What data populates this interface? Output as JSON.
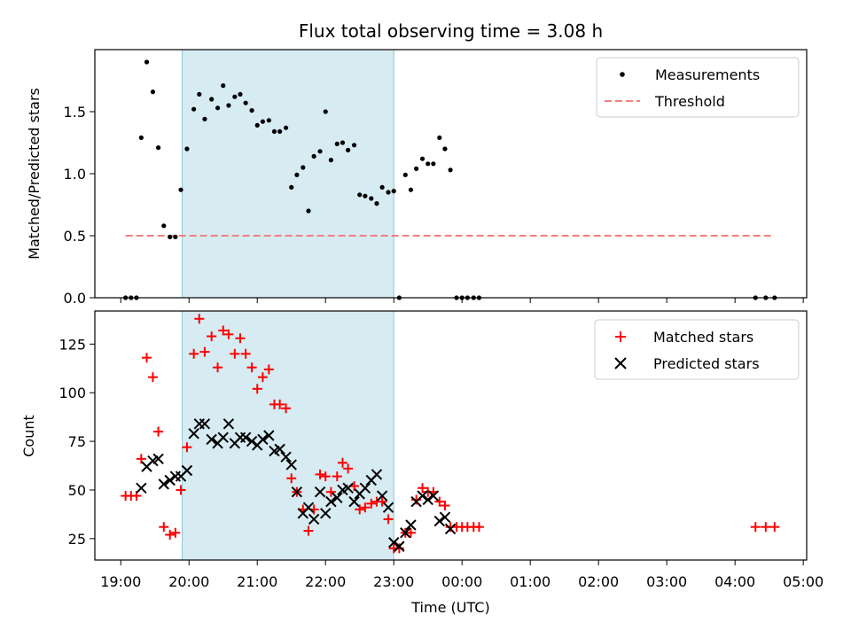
{
  "chart_data": [
    {
      "type": "scatter",
      "title": "Flux total observing time = 3.08 h",
      "ylabel": "Matched/Predicted stars",
      "ylim": [
        0,
        2.0
      ],
      "yticks": [
        0.0,
        0.5,
        1.0,
        1.5
      ],
      "ytick_labels": [
        "0.0",
        "0.5",
        "1.0",
        "1.5"
      ],
      "shaded_region": {
        "start": 19.9,
        "end": 23.0,
        "color": "#add8e6"
      },
      "legend_position": "upper right",
      "series": [
        {
          "name": "Measurements",
          "marker": "dot",
          "color": "#000000",
          "points": [
            [
              19.07,
              0
            ],
            [
              19.15,
              0
            ],
            [
              19.23,
              0
            ],
            [
              19.3,
              1.29
            ],
            [
              19.38,
              1.9
            ],
            [
              19.47,
              1.66
            ],
            [
              19.55,
              1.21
            ],
            [
              19.63,
              0.58
            ],
            [
              19.72,
              0.49
            ],
            [
              19.8,
              0.49
            ],
            [
              19.88,
              0.87
            ],
            [
              19.97,
              1.2
            ],
            [
              20.07,
              1.52
            ],
            [
              20.15,
              1.64
            ],
            [
              20.23,
              1.44
            ],
            [
              20.33,
              1.6
            ],
            [
              20.42,
              1.53
            ],
            [
              20.5,
              1.71
            ],
            [
              20.58,
              1.55
            ],
            [
              20.67,
              1.62
            ],
            [
              20.75,
              1.64
            ],
            [
              20.83,
              1.57
            ],
            [
              20.92,
              1.51
            ],
            [
              21.0,
              1.39
            ],
            [
              21.08,
              1.42
            ],
            [
              21.17,
              1.43
            ],
            [
              21.25,
              1.34
            ],
            [
              21.33,
              1.34
            ],
            [
              21.42,
              1.37
            ],
            [
              21.5,
              0.89
            ],
            [
              21.58,
              0.99
            ],
            [
              21.67,
              1.05
            ],
            [
              21.75,
              0.7
            ],
            [
              21.83,
              1.14
            ],
            [
              21.92,
              1.18
            ],
            [
              22.0,
              1.5
            ],
            [
              22.08,
              1.11
            ],
            [
              22.17,
              1.24
            ],
            [
              22.25,
              1.25
            ],
            [
              22.33,
              1.19
            ],
            [
              22.42,
              1.23
            ],
            [
              22.5,
              0.83
            ],
            [
              22.58,
              0.82
            ],
            [
              22.67,
              0.8
            ],
            [
              22.75,
              0.76
            ],
            [
              22.83,
              0.89
            ],
            [
              22.92,
              0.85
            ],
            [
              23.0,
              0.86
            ],
            [
              23.08,
              0
            ],
            [
              23.17,
              0.99
            ],
            [
              23.25,
              0.87
            ],
            [
              23.33,
              1.04
            ],
            [
              23.42,
              1.12
            ],
            [
              23.5,
              1.08
            ],
            [
              23.58,
              1.08
            ],
            [
              23.67,
              1.29
            ],
            [
              23.75,
              1.2
            ],
            [
              23.83,
              1.03
            ],
            [
              23.92,
              0
            ],
            [
              24.0,
              0
            ],
            [
              24.08,
              0
            ],
            [
              24.17,
              0
            ],
            [
              24.25,
              0
            ],
            [
              28.3,
              0
            ],
            [
              28.45,
              0
            ],
            [
              28.58,
              0
            ]
          ]
        },
        {
          "name": "Threshold",
          "style": "dashed",
          "color": "#f08080",
          "points": [
            [
              19.07,
              0.5
            ],
            [
              28.58,
              0.5
            ]
          ]
        }
      ]
    },
    {
      "type": "scatter",
      "xlabel": "Time (UTC)",
      "ylabel": "Count",
      "ylim": [
        14,
        142
      ],
      "yticks": [
        25,
        50,
        75,
        100,
        125
      ],
      "ytick_labels": [
        "25",
        "50",
        "75",
        "100",
        "125"
      ],
      "xlim": [
        18.62,
        29.05
      ],
      "xticks": [
        19,
        20,
        21,
        22,
        23,
        24,
        25,
        26,
        27,
        28,
        29
      ],
      "xtick_labels": [
        "19:00",
        "20:00",
        "21:00",
        "22:00",
        "23:00",
        "00:00",
        "01:00",
        "02:00",
        "03:00",
        "04:00",
        "05:00"
      ],
      "shaded_region": {
        "start": 19.9,
        "end": 23.0,
        "color": "#add8e6"
      },
      "legend_position": "upper right",
      "series": [
        {
          "name": "Matched stars",
          "marker": "plus",
          "color": "#ff0000",
          "points": [
            [
              19.07,
              47
            ],
            [
              19.15,
              47
            ],
            [
              19.23,
              47
            ],
            [
              19.3,
              66
            ],
            [
              19.38,
              118
            ],
            [
              19.47,
              108
            ],
            [
              19.55,
              80
            ],
            [
              19.63,
              31
            ],
            [
              19.72,
              27
            ],
            [
              19.8,
              28
            ],
            [
              19.88,
              50
            ],
            [
              19.97,
              72
            ],
            [
              20.07,
              120
            ],
            [
              20.15,
              138
            ],
            [
              20.23,
              121
            ],
            [
              20.33,
              129
            ],
            [
              20.42,
              113
            ],
            [
              20.5,
              132
            ],
            [
              20.58,
              130
            ],
            [
              20.67,
              120
            ],
            [
              20.75,
              128
            ],
            [
              20.83,
              120
            ],
            [
              20.92,
              113
            ],
            [
              21.0,
              102
            ],
            [
              21.08,
              108
            ],
            [
              21.17,
              112
            ],
            [
              21.25,
              94
            ],
            [
              21.33,
              94
            ],
            [
              21.42,
              92
            ],
            [
              21.5,
              56
            ],
            [
              21.58,
              49
            ],
            [
              21.67,
              40
            ],
            [
              21.75,
              29
            ],
            [
              21.83,
              40
            ],
            [
              21.92,
              58
            ],
            [
              22.0,
              57
            ],
            [
              22.08,
              49
            ],
            [
              22.17,
              57
            ],
            [
              22.25,
              64
            ],
            [
              22.33,
              61
            ],
            [
              22.42,
              52
            ],
            [
              22.5,
              40
            ],
            [
              22.58,
              41
            ],
            [
              22.67,
              43
            ],
            [
              22.75,
              44
            ],
            [
              22.83,
              44
            ],
            [
              22.92,
              35
            ],
            [
              23.0,
              20
            ],
            [
              23.08,
              20
            ],
            [
              23.17,
              28
            ],
            [
              23.25,
              28
            ],
            [
              23.33,
              45
            ],
            [
              23.42,
              51
            ],
            [
              23.5,
              49
            ],
            [
              23.58,
              49
            ],
            [
              23.67,
              44
            ],
            [
              23.75,
              42
            ],
            [
              23.83,
              31
            ],
            [
              23.92,
              31
            ],
            [
              24.0,
              31
            ],
            [
              24.08,
              31
            ],
            [
              24.17,
              31
            ],
            [
              24.25,
              31
            ],
            [
              28.3,
              31
            ],
            [
              28.45,
              31
            ],
            [
              28.58,
              31
            ]
          ]
        },
        {
          "name": "Predicted stars",
          "marker": "x",
          "color": "#000000",
          "points": [
            [
              19.3,
              51
            ],
            [
              19.38,
              62
            ],
            [
              19.47,
              65
            ],
            [
              19.55,
              66
            ],
            [
              19.63,
              53
            ],
            [
              19.72,
              55
            ],
            [
              19.8,
              57
            ],
            [
              19.88,
              57
            ],
            [
              19.97,
              60
            ],
            [
              20.07,
              79
            ],
            [
              20.15,
              84
            ],
            [
              20.23,
              84
            ],
            [
              20.33,
              76
            ],
            [
              20.42,
              74
            ],
            [
              20.5,
              77
            ],
            [
              20.58,
              84
            ],
            [
              20.67,
              74
            ],
            [
              20.75,
              77
            ],
            [
              20.83,
              77
            ],
            [
              20.92,
              75
            ],
            [
              21.0,
              73
            ],
            [
              21.08,
              76
            ],
            [
              21.17,
              78
            ],
            [
              21.25,
              70
            ],
            [
              21.33,
              71
            ],
            [
              21.42,
              67
            ],
            [
              21.5,
              63
            ],
            [
              21.58,
              49
            ],
            [
              21.67,
              38
            ],
            [
              21.75,
              41
            ],
            [
              21.83,
              35
            ],
            [
              21.92,
              49
            ],
            [
              22.0,
              38
            ],
            [
              22.08,
              44
            ],
            [
              22.17,
              46
            ],
            [
              22.25,
              50
            ],
            [
              22.33,
              51
            ],
            [
              22.42,
              44
            ],
            [
              22.5,
              48
            ],
            [
              22.58,
              51
            ],
            [
              22.67,
              55
            ],
            [
              22.75,
              58
            ],
            [
              22.83,
              47
            ],
            [
              22.92,
              41
            ],
            [
              23.0,
              23
            ],
            [
              23.08,
              21
            ],
            [
              23.17,
              28
            ],
            [
              23.25,
              32
            ],
            [
              23.33,
              44
            ],
            [
              23.42,
              47
            ],
            [
              23.5,
              45
            ],
            [
              23.58,
              47
            ],
            [
              23.67,
              34
            ],
            [
              23.75,
              36
            ],
            [
              23.83,
              30
            ]
          ]
        }
      ]
    }
  ]
}
